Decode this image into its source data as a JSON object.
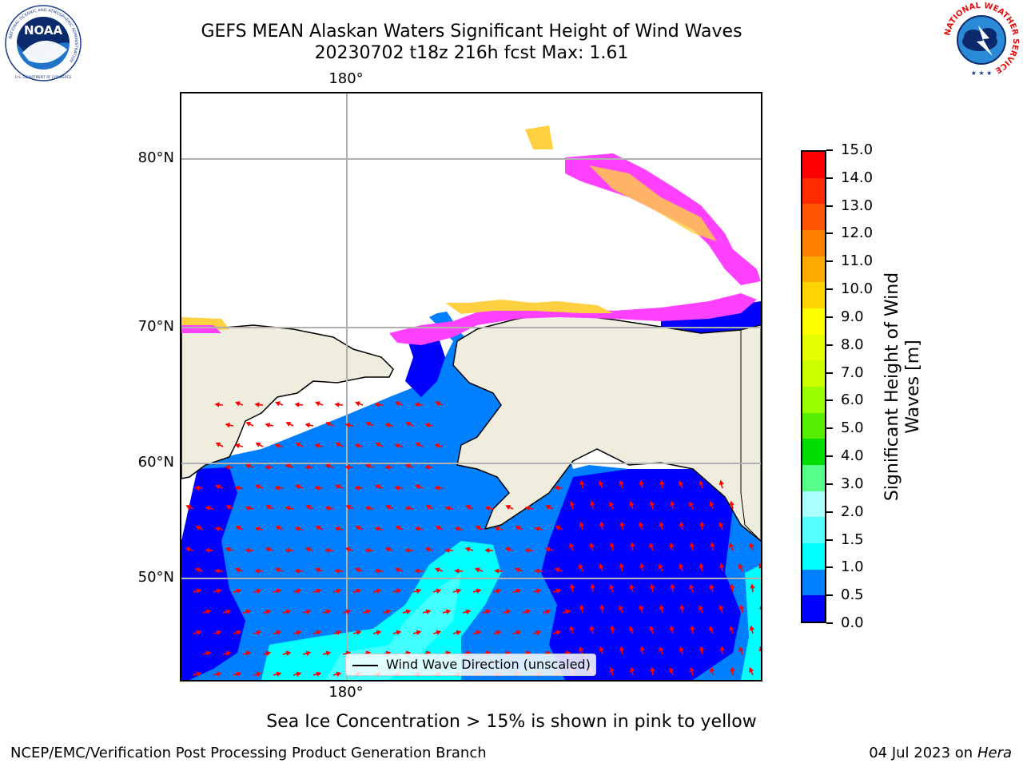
{
  "header": {
    "title_line1": "GEFS MEAN Alaskan Waters Significant Height of Wind Waves",
    "title_line2": "20230702 t18z 216h fcst   Max: 1.61"
  },
  "logos": {
    "left": {
      "name": "noaa-logo",
      "text": "NOAA",
      "ring_text": "NATIONAL OCEANIC AND ATMOSPHERIC ADMINISTRATION",
      "bottom_text": "U.S. DEPARTMENT OF COMMERCE"
    },
    "right": {
      "name": "nws-logo",
      "ring_text": "NATIONAL WEATHER SERVICE"
    }
  },
  "map": {
    "lon_label_top": "180°",
    "lon_label_bottom": "180°",
    "lat_labels": [
      "80°N",
      "70°N",
      "60°N",
      "50°N"
    ],
    "colors": {
      "land": "#efedde",
      "wave_0_05": "#0000ff",
      "wave_05_10": "#0080ff",
      "wave_10_15": "#00ffff",
      "wave_15_20": "#40ffff",
      "ice_pink": "#ff40ff",
      "ice_yellow": "#ffd040",
      "arrow": "#ff0000",
      "grid": "#b0b0b0"
    },
    "legend_label": "Wind Wave Direction (unscaled)"
  },
  "colorbar": {
    "label_line1": "Significant Height of Wind",
    "label_line2": "Waves [m]",
    "ticks": [
      "15.0",
      "14.0",
      "13.0",
      "12.0",
      "11.0",
      "10.0",
      "9.0",
      "8.0",
      "7.0",
      "6.0",
      "5.0",
      "4.0",
      "3.0",
      "2.0",
      "1.5",
      "1.0",
      "0.5",
      "0.0"
    ],
    "colors_top_to_bottom": [
      "#ff0000",
      "#ff2a00",
      "#ff5500",
      "#ff8000",
      "#ffaa00",
      "#ffd400",
      "#ffff00",
      "#e6ff00",
      "#ccff00",
      "#99ff00",
      "#55ee00",
      "#00dd00",
      "#55ff88",
      "#aaffff",
      "#55ffff",
      "#00ffff",
      "#0080ff",
      "#0000ff"
    ]
  },
  "note": "Sea Ice Concentration > 15% is shown in pink to yellow",
  "footer": {
    "left": "NCEP/EMC/Verification Post Processing Product Generation Branch",
    "right_date": "04 Jul 2023 on ",
    "right_host": "Hera"
  }
}
